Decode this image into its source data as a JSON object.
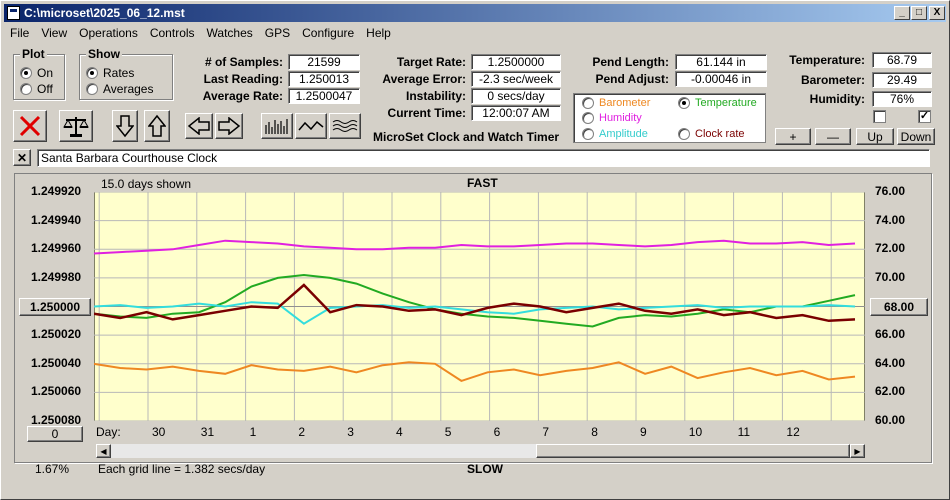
{
  "window": {
    "title": "C:\\microset\\2025_06_12.mst"
  },
  "title_buttons": {
    "minimize": "_",
    "maximize": "□",
    "close": "X"
  },
  "menu": [
    "File",
    "View",
    "Operations",
    "Controls",
    "Watches",
    "GPS",
    "Configure",
    "Help"
  ],
  "plot_group": {
    "title": "Plot",
    "on": "On",
    "off": "Off",
    "selected": "On"
  },
  "show_group": {
    "title": "Show",
    "rates": "Rates",
    "averages": "Averages",
    "selected": "Rates"
  },
  "stats": {
    "samples_label": "# of Samples:",
    "samples": "21599",
    "last_label": "Last Reading:",
    "last": "1.250013",
    "avg_rate_label": "Average Rate:",
    "avg_rate": "1.2500047"
  },
  "rates": {
    "target_label": "Target Rate:",
    "target": "1.2500000",
    "avg_err_label": "Average Error:",
    "avg_err": "-2.3 sec/week",
    "instab_label": "Instability:",
    "instab": "0 secs/day",
    "time_label": "Current Time:",
    "time": "12:00:07 AM"
  },
  "pend": {
    "length_label": "Pend Length:",
    "length": "61.144 in",
    "adjust_label": "Pend Adjust:",
    "adjust": "-0.00046 in"
  },
  "env": {
    "temp_label": "Temperature:",
    "temp": "68.79",
    "baro_label": "Barometer:",
    "baro": "29.49",
    "hum_label": "Humidity:",
    "hum": "76%"
  },
  "legend": {
    "barometer": "Barometer",
    "temperature": "Temperature",
    "humidity": "Humidity",
    "amplitude": "Amplitude",
    "clock_rate": "Clock rate",
    "selected": "Temperature"
  },
  "adjust_buttons": {
    "plus": "+",
    "minus": "—",
    "up": "Up",
    "down": "Down"
  },
  "product_title": "MicroSet Clock and Watch Timer",
  "clock_name": "Santa Barbara Courthouse Clock",
  "colors": {
    "temperature": "#22aa22",
    "humidity": "#e020e0",
    "barometer": "#ee8822",
    "amplitude": "#33dddd",
    "clock_rate": "#7a0000",
    "plot_bg": "#ffffcc",
    "grid": "#b8b8b8"
  },
  "chart_data": {
    "type": "line",
    "days_shown": "15.0 days shown",
    "top_label": "FAST",
    "bottom_label": "SLOW",
    "grid_note": "Each grid line = 1.382 secs/day",
    "percent": "1.67%",
    "day_label": "Day:",
    "x_ticks": [
      "30",
      "31",
      "1",
      "2",
      "3",
      "4",
      "5",
      "6",
      "7",
      "8",
      "9",
      "10",
      "11",
      "12"
    ],
    "left_axis": {
      "ticks": [
        "1.249920",
        "1.249940",
        "1.249960",
        "1.249980",
        "1.250000",
        "1.250020",
        "1.250040",
        "1.250060",
        "1.250080"
      ],
      "min": 1.24992,
      "max": 1.25008,
      "center": "1.250000"
    },
    "right_axis": {
      "ticks": [
        "76.00",
        "74.00",
        "72.00",
        "70.00",
        "68.00",
        "66.00",
        "64.00",
        "62.00",
        "60.00"
      ],
      "min": 60,
      "max": 76,
      "center": "68.00"
    },
    "zero_button": "0",
    "series": [
      {
        "name": "Humidity",
        "axis": "right",
        "values": [
          71.7,
          71.8,
          71.9,
          72.0,
          72.3,
          72.6,
          72.5,
          72.4,
          72.2,
          72.1,
          72.0,
          72.0,
          72.1,
          72.1,
          72.3,
          72.2,
          72.2,
          72.3,
          72.4,
          72.4,
          72.3,
          72.2,
          72.3,
          72.5,
          72.6,
          72.4,
          72.4,
          72.5,
          72.3,
          72.4
        ]
      },
      {
        "name": "Temperature",
        "axis": "right",
        "values": [
          67.5,
          67.3,
          67.2,
          67.5,
          67.6,
          68.3,
          69.4,
          70.0,
          70.2,
          70.0,
          69.6,
          68.9,
          68.3,
          67.8,
          67.5,
          67.3,
          67.2,
          67.0,
          66.8,
          66.6,
          67.2,
          67.4,
          67.3,
          67.5,
          67.8,
          67.6,
          68.0,
          68.0,
          68.4,
          68.8
        ]
      },
      {
        "name": "Amplitude",
        "axis": "right",
        "values": [
          68.0,
          68.1,
          67.9,
          68.0,
          68.2,
          68.0,
          68.3,
          68.2,
          66.8,
          67.9,
          68.0,
          68.1,
          67.9,
          68.0,
          67.8,
          67.6,
          67.5,
          67.8,
          67.9,
          68.0,
          67.8,
          67.9,
          68.0,
          68.1,
          67.9,
          68.0,
          68.0,
          68.0,
          68.1,
          68.0
        ]
      },
      {
        "name": "Barometer",
        "axis": "right",
        "values": [
          64.0,
          63.7,
          63.6,
          63.8,
          63.5,
          63.3,
          63.9,
          63.6,
          63.5,
          63.8,
          63.4,
          63.9,
          64.1,
          64.0,
          62.8,
          63.4,
          63.6,
          63.2,
          63.5,
          63.7,
          64.1,
          63.3,
          63.8,
          63.0,
          63.4,
          63.7,
          63.2,
          63.5,
          62.9,
          63.1
        ]
      },
      {
        "name": "Clock rate",
        "axis": "left",
        "values": [
          1.250005,
          1.250008,
          1.250004,
          1.250009,
          1.250006,
          1.250003,
          1.25,
          1.250001,
          1.249985,
          1.250004,
          1.249999,
          1.25,
          1.250003,
          1.250002,
          1.250006,
          1.250001,
          1.249998,
          1.25,
          1.250004,
          1.250001,
          1.249998,
          1.250003,
          1.250005,
          1.250002,
          1.250006,
          1.250004,
          1.250008,
          1.250006,
          1.25001,
          1.250009
        ]
      }
    ]
  }
}
